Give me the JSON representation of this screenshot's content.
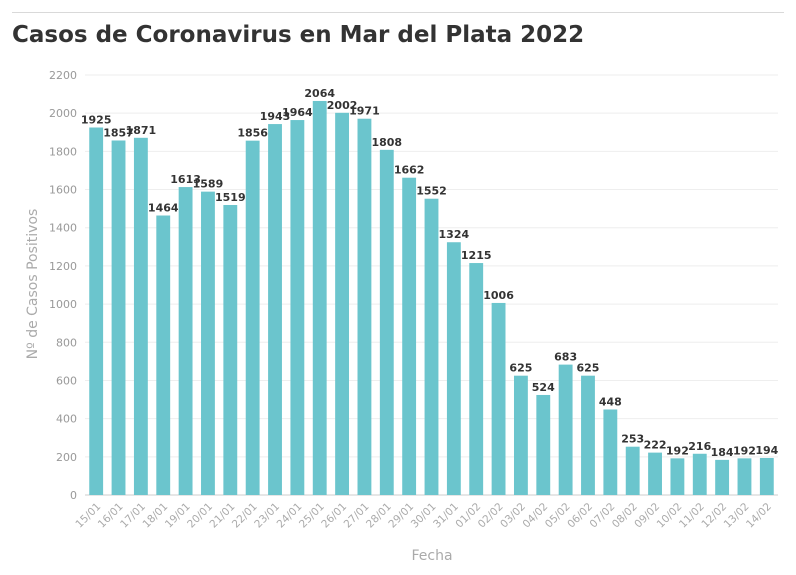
{
  "chart_data": {
    "type": "bar",
    "title": "Casos de Coronavirus en Mar del Plata 2022",
    "xlabel": "Fecha",
    "ylabel": "Nº de Casos Positivos",
    "ylim": [
      0,
      2200
    ],
    "yticks": [
      0,
      200,
      400,
      600,
      800,
      1000,
      1200,
      1400,
      1600,
      1800,
      2000,
      2200
    ],
    "grid": true,
    "bar_color": "#6bc5cd",
    "categories": [
      "15/01",
      "16/01",
      "17/01",
      "18/01",
      "19/01",
      "20/01",
      "21/01",
      "22/01",
      "23/01",
      "24/01",
      "25/01",
      "26/01",
      "27/01",
      "28/01",
      "29/01",
      "30/01",
      "31/01",
      "01/02",
      "02/02",
      "03/02",
      "04/02",
      "05/02",
      "06/02",
      "07/02",
      "08/02",
      "09/02",
      "10/02",
      "11/02",
      "12/02",
      "13/02",
      "14/02"
    ],
    "values": [
      1925,
      1857,
      1871,
      1464,
      1613,
      1589,
      1519,
      1856,
      1943,
      1964,
      2064,
      2002,
      1971,
      1808,
      1662,
      1552,
      1324,
      1215,
      1006,
      625,
      524,
      683,
      625,
      448,
      253,
      222,
      192,
      216,
      184,
      192,
      194
    ]
  }
}
